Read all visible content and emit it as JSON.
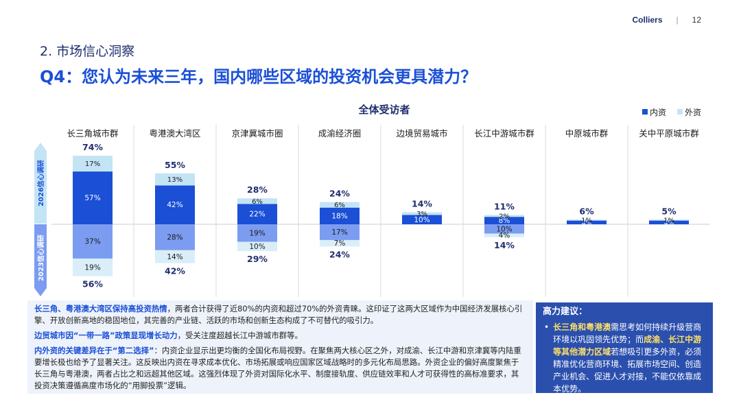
{
  "header": {
    "brand": "Colliers",
    "separator": "|",
    "page": "12"
  },
  "section_title": "2. 市场信心洞察",
  "question": "Q4：您认为未来三年，国内哪些区域的投资机会更具潜力？",
  "colors": {
    "domestic_2026": "#1a4fd6",
    "foreign_2026": "#c3e4f5",
    "domestic_2023": "#7b9cf0",
    "foreign_2023": "#d9eef8",
    "accent": "#1a4fd6",
    "navy": "#2a4fad"
  },
  "chart_data": {
    "type": "bar",
    "title": "全体受访者",
    "legend": [
      "内资",
      "外资"
    ],
    "legend_position": "top-right",
    "row_labels": [
      "2026信心调研",
      "2023信心调研"
    ],
    "categories": [
      "长三角城市群",
      "粤港澳大湾区",
      "京津冀城市圈",
      "成渝经济圈",
      "边境贸易城市",
      "长江中游城市群",
      "中原城市群",
      "关中平原城市群"
    ],
    "series": [
      {
        "name": "内资",
        "year": "2026",
        "values": [
          57,
          42,
          22,
          18,
          10,
          8,
          4,
          4
        ],
        "labels": [
          "57%",
          "42%",
          "22%",
          "18%",
          "10%",
          "8%",
          "4%",
          "4%"
        ]
      },
      {
        "name": "外资",
        "year": "2026",
        "values": [
          17,
          13,
          6,
          6,
          3,
          2,
          1,
          1
        ],
        "labels": [
          "17%",
          "13%",
          "6%",
          "6%",
          "3%",
          "2%",
          "1%",
          "1%"
        ]
      },
      {
        "name": "内资",
        "year": "2023",
        "values": [
          37,
          28,
          19,
          17,
          0,
          10,
          0,
          0
        ],
        "labels": [
          "37%",
          "28%",
          "19%",
          "17%",
          "",
          "10%",
          "",
          ""
        ]
      },
      {
        "name": "外资",
        "year": "2023",
        "values": [
          19,
          14,
          10,
          7,
          0,
          4,
          0,
          0
        ],
        "labels": [
          "19%",
          "14%",
          "10%",
          "7%",
          "",
          "4%",
          "",
          ""
        ]
      }
    ],
    "totals_2026": [
      "74%",
      "55%",
      "28%",
      "24%",
      "14%",
      "11%",
      "6%",
      "5%"
    ],
    "totals_2023": [
      "56%",
      "42%",
      "29%",
      "24%",
      "",
      "14%",
      "",
      ""
    ]
  },
  "insights": {
    "p1_bold": "长三角、粤港澳大湾区保持高投资热情",
    "p1_text": "，两者合计获得了近80%的内资和超过70%的外资青睐。这印证了这两大区域作为中国经济发展核心引擎、开放创新高地的稳固地位，其完善的产业链、活跃的市场和创新生态构成了不可替代的吸引力。",
    "p2_bold": "边贸城市因“一带一路”政策显现增长动力",
    "p2_text": "，受关注度超越长江中游城市群等。",
    "p3_bold": "内外资的关键差异在于“第二选择”",
    "p3_text": "：内资企业显示出更均衡的全国化布局视野。在聚焦两大核心区之外，对成渝、长江中游和京津冀等内陆重要增长极也给予了显著关注。这反映出内资在寻求成本优化、市场拓展或响应国家区域战略时的多元化布局思路。外资企业的偏好高度聚焦于长三角与粤港澳，两者占比之和远超其他区域。这强烈体现了外资对国际化水平、制度接轨度、供应链效率和人才可获得性的高标准要求，其投资决策遵循高度市场化的“用脚投票”逻辑。"
  },
  "advice": {
    "title": "高力建议：",
    "bullet": "•",
    "b1": "长三角和粤港澳",
    "t1": "需思考如何持续升级营商环境以巩固领先优势；而",
    "b2": "成渝、长江中游等其他潜力区域",
    "t2": "若想吸引更多外资，必须精准优化营商环境、拓展市场空间、创造产业机会、促进人才对接，不能仅依靠成本优势。"
  }
}
